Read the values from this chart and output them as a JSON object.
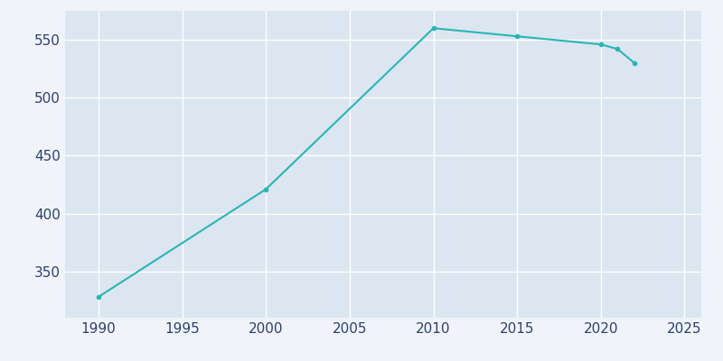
{
  "years": [
    1990,
    2000,
    2010,
    2015,
    2020,
    2021,
    2022
  ],
  "population": [
    328,
    421,
    560,
    553,
    546,
    542,
    530
  ],
  "line_color": "#2ab5b5",
  "marker": "o",
  "marker_size": 3,
  "line_width": 1.5,
  "plot_bg_color": "#dce6f0",
  "fig_bg_color": "#f0f4fa",
  "grid_color": "#ffffff",
  "xlim": [
    1988,
    2026
  ],
  "ylim": [
    310,
    575
  ],
  "xticks": [
    1990,
    1995,
    2000,
    2005,
    2010,
    2015,
    2020,
    2025
  ],
  "yticks": [
    350,
    400,
    450,
    500,
    550
  ],
  "tick_label_color": "#2e3f6e",
  "tick_fontsize": 11
}
